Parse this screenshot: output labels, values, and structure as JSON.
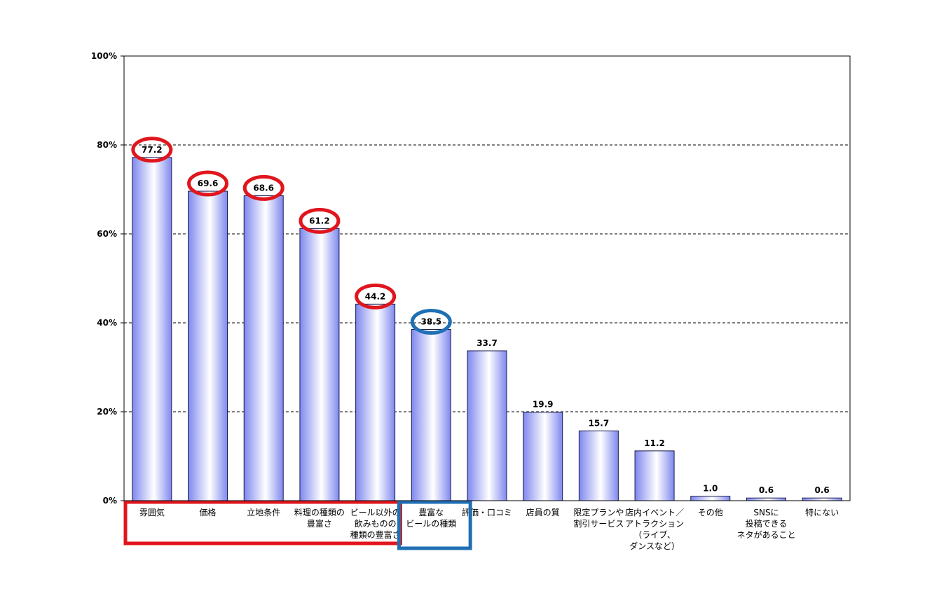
{
  "chart_data": {
    "type": "bar",
    "title": "",
    "xlabel": "",
    "ylabel": "",
    "ylim": [
      0,
      100
    ],
    "yticks": [
      "0%",
      "20%",
      "40%",
      "60%",
      "80%",
      "100%"
    ],
    "grid": "horizontal-dashed",
    "categories": [
      [
        "雰囲気"
      ],
      [
        "価格"
      ],
      [
        "立地条件"
      ],
      [
        "料理の種類の",
        "豊富さ"
      ],
      [
        "ビール以外の",
        "飲みものの",
        "種類の豊富さ"
      ],
      [
        "豊富な",
        "ビールの種類"
      ],
      [
        "評価・口コミ"
      ],
      [
        "店員の質"
      ],
      [
        "限定プランや",
        "割引サービス"
      ],
      [
        "店内イベント／",
        "アトラクション",
        "（ライブ、",
        "ダンスなど）"
      ],
      [
        "その他"
      ],
      [
        "SNSに",
        "投稿できる",
        "ネタがあること"
      ],
      [
        "特にない"
      ]
    ],
    "values": [
      77.2,
      69.6,
      68.6,
      61.2,
      44.2,
      38.5,
      33.7,
      19.9,
      15.7,
      11.2,
      1.0,
      0.6,
      0.6
    ],
    "value_labels": [
      "77.2",
      "69.6",
      "68.6",
      "61.2",
      "44.2",
      "38.5",
      "33.7",
      "19.9",
      "15.7",
      "11.2",
      "1.0",
      "0.6",
      "0.6"
    ],
    "bar_color": "#7f88ee",
    "bar_highlight": "#ffffff",
    "highlights": {
      "red_circled_indices": [
        0,
        1,
        2,
        3,
        4
      ],
      "blue_circled_indices": [
        5
      ],
      "red_box_category_indices": [
        0,
        1,
        2,
        3,
        4
      ],
      "blue_box_category_indices": [
        5
      ],
      "red_color": "#e0161c",
      "blue_color": "#1f6fb5"
    }
  }
}
